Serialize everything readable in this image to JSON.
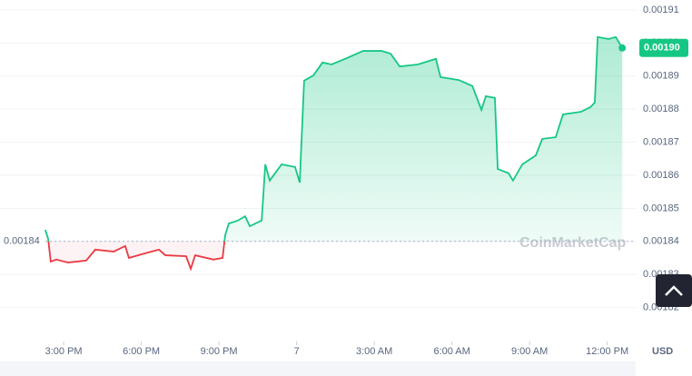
{
  "chart_data": {
    "type": "baseline-line",
    "x": [
      14.29,
      14.4,
      14.5,
      14.72,
      15.17,
      15.87,
      16.22,
      16.93,
      17.38,
      17.52,
      18.15,
      18.68,
      18.93,
      19.73,
      19.91,
      20.08,
      20.79,
      21.14,
      21.24,
      21.38,
      21.73,
      22.01,
      22.19,
      22.65,
      22.79,
      22.96,
      23.42,
      23.94,
      24.12,
      24.29,
      24.65,
      25.0,
      25.35,
      25.87,
      26.57,
      27.28,
      27.63,
      27.98,
      28.68,
      29.38,
      29.56,
      30.26,
      30.79,
      31.14,
      31.31,
      31.66,
      31.77,
      32.19,
      32.36,
      32.72,
      33.24,
      33.49,
      34.01,
      34.29,
      34.99,
      35.35,
      35.52,
      35.63,
      36.05,
      36.33,
      36.58
    ],
    "values": [
      0.0018435,
      0.0018408,
      0.0018339,
      0.0018345,
      0.0018336,
      0.0018342,
      0.0018375,
      0.0018369,
      0.0018386,
      0.001835,
      0.0018364,
      0.0018375,
      0.0018358,
      0.0018355,
      0.0018317,
      0.0018358,
      0.0018345,
      0.001835,
      0.0018419,
      0.0018454,
      0.0018463,
      0.0018476,
      0.0018446,
      0.0018463,
      0.0018633,
      0.0018584,
      0.0018633,
      0.0018625,
      0.0018578,
      0.0018886,
      0.0018902,
      0.0018941,
      0.0018935,
      0.0018952,
      0.0018976,
      0.0018976,
      0.0018968,
      0.0018929,
      0.0018935,
      0.0018952,
      0.0018897,
      0.0018888,
      0.001887,
      0.0018798,
      0.0018839,
      0.0018834,
      0.0018619,
      0.0018606,
      0.0018584,
      0.0018633,
      0.001866,
      0.001871,
      0.0018715,
      0.0018784,
      0.0018792,
      0.0018806,
      0.001882,
      0.0019018,
      0.0019012,
      0.0019018,
      0.0018985
    ],
    "up_color": "#16c784",
    "down_color": "#ea3943",
    "baseline": 0.00184,
    "current_price": {
      "value": 0.0018985,
      "label": "0.00190"
    },
    "xlim": [
      12.54,
      37.1
    ],
    "xticks": [
      {
        "value": 15,
        "label": "3:00 PM"
      },
      {
        "value": 18,
        "label": "6:00 PM"
      },
      {
        "value": 21,
        "label": "9:00 PM"
      },
      {
        "value": 24,
        "label": "7"
      },
      {
        "value": 27,
        "label": "3:00 AM"
      },
      {
        "value": 30,
        "label": "6:00 AM"
      },
      {
        "value": 33,
        "label": "9:00 AM"
      },
      {
        "value": 36,
        "label": "12:00 PM"
      }
    ],
    "ylim": [
      0.00181,
      0.001913
    ],
    "yticks": [
      0.00182,
      0.00183,
      0.00184,
      0.00185,
      0.00186,
      0.00187,
      0.00188,
      0.00189,
      {
        "value": 0.0019,
        "label": "0.00190"
      },
      0.00191
    ],
    "currency": "USD",
    "watermark": "CoinMarketCap",
    "grid": true
  }
}
